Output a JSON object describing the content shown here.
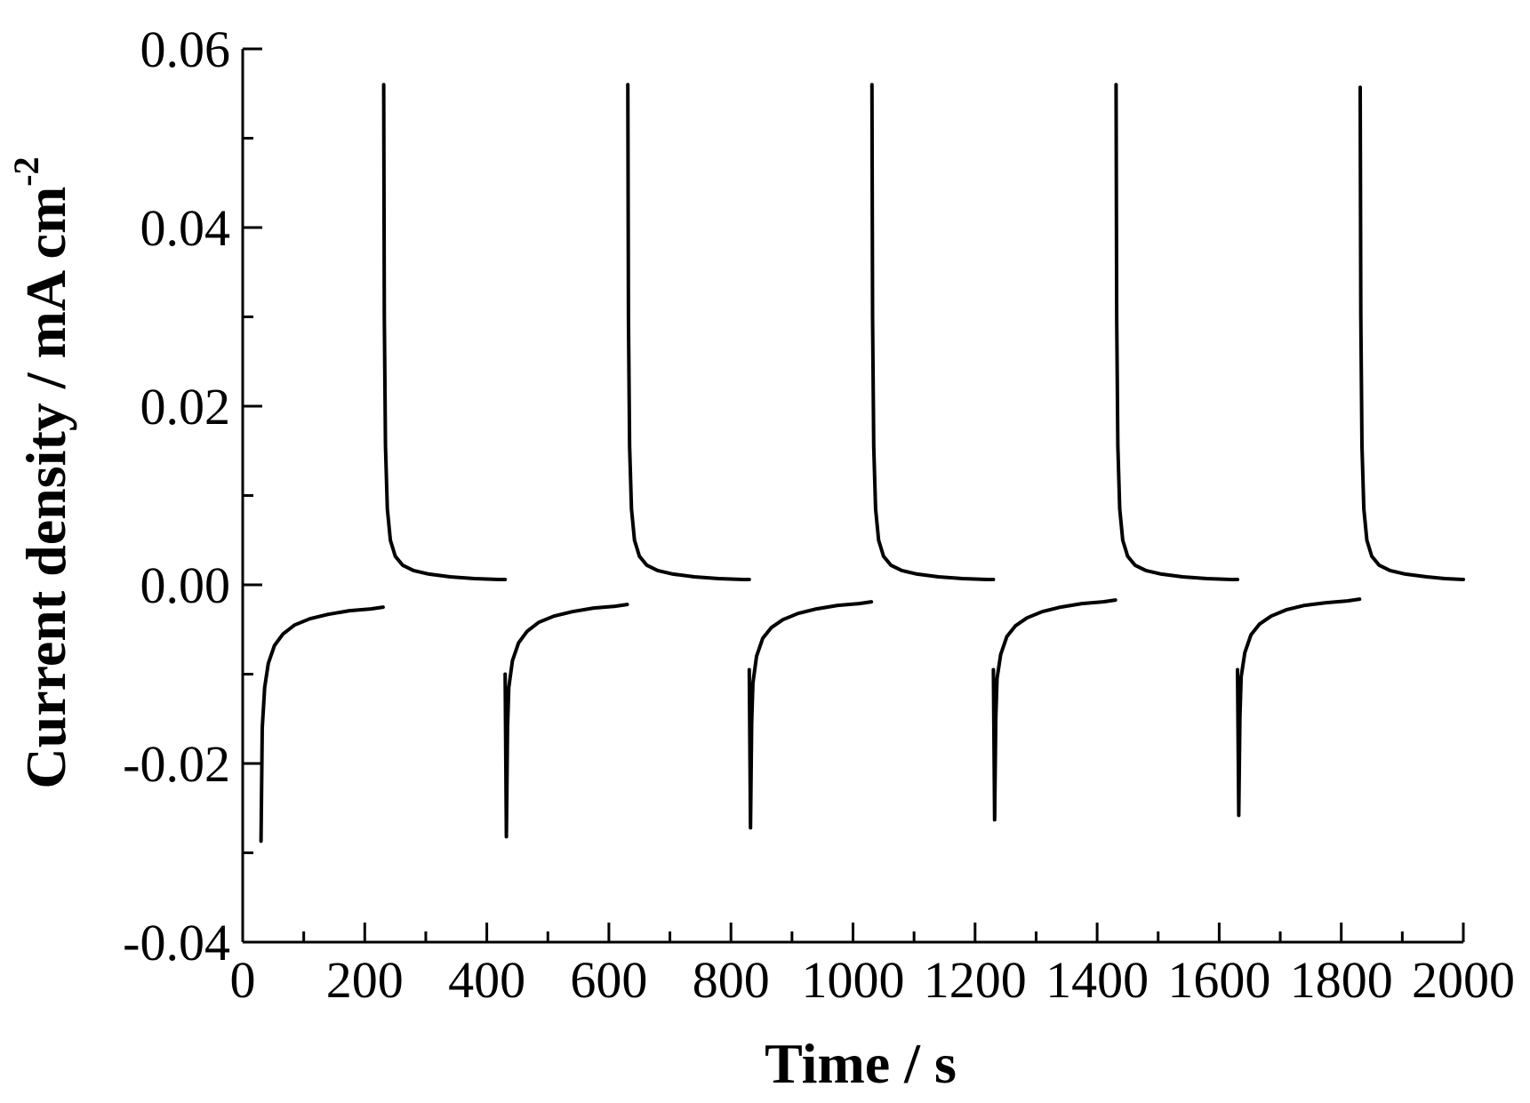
{
  "chart_data": {
    "type": "line",
    "title": "",
    "xlabel": "Time / s",
    "ylabel_main": "Current density / mA cm",
    "ylabel_superscript": "-2",
    "xlim": [
      0,
      2000
    ],
    "ylim": [
      -0.04,
      0.06
    ],
    "x_ticks": [
      0,
      200,
      400,
      600,
      800,
      1000,
      1200,
      1400,
      1600,
      1800,
      2000
    ],
    "x_tick_labels": [
      "0",
      "200",
      "400",
      "600",
      "800",
      "1000",
      "1200",
      "1400",
      "1600",
      "1800",
      "2000"
    ],
    "y_ticks": [
      -0.04,
      -0.02,
      0.0,
      0.02,
      0.04,
      0.06
    ],
    "y_tick_labels": [
      "-0.04",
      "-0.02",
      "0.00",
      "0.02",
      "0.04",
      "0.06"
    ],
    "grid": false,
    "line_color": "#000000",
    "series": [
      {
        "segments": [
          {
            "x": [
              30,
              32,
              36,
              42,
              52,
              66,
              85,
              110,
              140,
              175,
              210,
              230
            ],
            "y": [
              -0.0287,
              -0.016,
              -0.0115,
              -0.0088,
              -0.0068,
              -0.0055,
              -0.0045,
              -0.0038,
              -0.0033,
              -0.0029,
              -0.0027,
              -0.0025
            ]
          },
          {
            "x": [
              231,
              232,
              234,
              237,
              242,
              250,
              262,
              280,
              305,
              340,
              380,
              420,
              430
            ],
            "y": [
              0.056,
              0.03,
              0.0155,
              0.0085,
              0.005,
              0.0032,
              0.0022,
              0.0016,
              0.0012,
              0.0009,
              0.0007,
              0.0006,
              0.0006
            ]
          },
          {
            "x": [
              430,
              432,
              434,
              436,
              442,
              452,
              466,
              485,
              510,
              540,
              575,
              610,
              630
            ],
            "y": [
              -0.01,
              -0.0282,
              -0.016,
              -0.0115,
              -0.0085,
              -0.0065,
              -0.0052,
              -0.0042,
              -0.0035,
              -0.003,
              -0.0026,
              -0.0024,
              -0.0022
            ]
          },
          {
            "x": [
              631,
              632,
              634,
              637,
              642,
              650,
              662,
              680,
              705,
              740,
              780,
              820,
              830
            ],
            "y": [
              0.056,
              0.03,
              0.0155,
              0.0085,
              0.005,
              0.0032,
              0.0022,
              0.0016,
              0.0012,
              0.0009,
              0.0007,
              0.0006,
              0.0006
            ]
          },
          {
            "x": [
              830,
              832,
              834,
              836,
              842,
              852,
              866,
              885,
              910,
              940,
              975,
              1010,
              1030
            ],
            "y": [
              -0.0095,
              -0.0272,
              -0.0155,
              -0.011,
              -0.008,
              -0.006,
              -0.0048,
              -0.0039,
              -0.0032,
              -0.0027,
              -0.0023,
              -0.0021,
              -0.0019
            ]
          },
          {
            "x": [
              1031,
              1032,
              1034,
              1037,
              1042,
              1050,
              1062,
              1080,
              1105,
              1140,
              1180,
              1220,
              1230
            ],
            "y": [
              0.056,
              0.03,
              0.0155,
              0.0085,
              0.005,
              0.0032,
              0.0022,
              0.0016,
              0.0012,
              0.0009,
              0.0007,
              0.0006,
              0.0006
            ]
          },
          {
            "x": [
              1230,
              1232,
              1234,
              1236,
              1242,
              1252,
              1266,
              1285,
              1310,
              1340,
              1375,
              1410,
              1430
            ],
            "y": [
              -0.0095,
              -0.0263,
              -0.015,
              -0.0105,
              -0.0078,
              -0.0058,
              -0.0046,
              -0.0037,
              -0.003,
              -0.0025,
              -0.0021,
              -0.0019,
              -0.0017
            ]
          },
          {
            "x": [
              1431,
              1432,
              1434,
              1437,
              1442,
              1450,
              1462,
              1480,
              1505,
              1540,
              1580,
              1620,
              1630
            ],
            "y": [
              0.056,
              0.03,
              0.0155,
              0.0085,
              0.005,
              0.0032,
              0.0022,
              0.0016,
              0.0012,
              0.0009,
              0.0007,
              0.0006,
              0.0006
            ]
          },
          {
            "x": [
              1630,
              1632,
              1634,
              1636,
              1642,
              1652,
              1666,
              1685,
              1710,
              1740,
              1775,
              1810,
              1830
            ],
            "y": [
              -0.0095,
              -0.0258,
              -0.0148,
              -0.0103,
              -0.0076,
              -0.0056,
              -0.0044,
              -0.0035,
              -0.0028,
              -0.0023,
              -0.002,
              -0.0018,
              -0.0016
            ]
          },
          {
            "x": [
              1831,
              1832,
              1834,
              1837,
              1842,
              1850,
              1862,
              1880,
              1905,
              1940,
              1970,
              2000
            ],
            "y": [
              0.0557,
              0.03,
              0.0155,
              0.0085,
              0.005,
              0.0032,
              0.0022,
              0.0016,
              0.0012,
              0.0009,
              0.0007,
              0.0006
            ]
          }
        ]
      }
    ]
  }
}
